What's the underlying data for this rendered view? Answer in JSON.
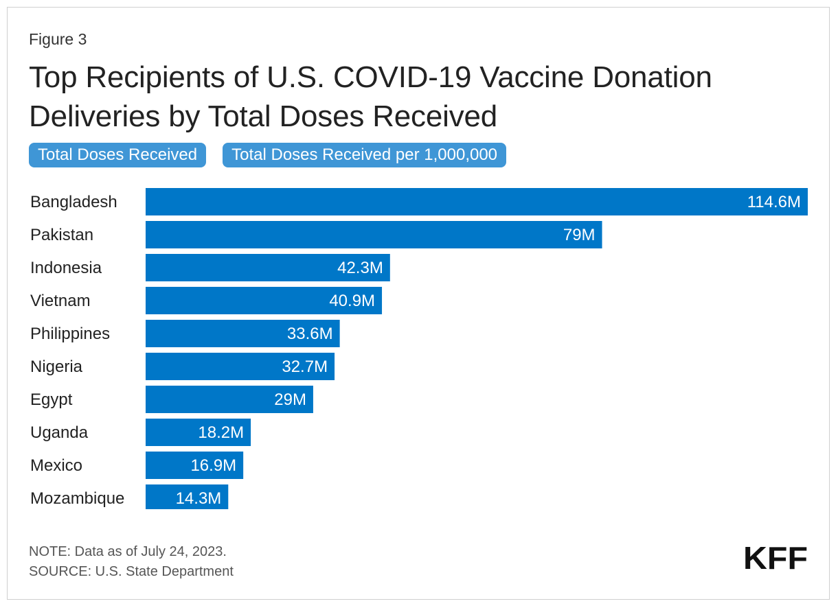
{
  "figure_label": "Figure 3",
  "title": "Top Recipients of U.S. COVID-19 Vaccine Donation Deliveries by Total Doses Received",
  "toggles": [
    {
      "label": "Total Doses Received"
    },
    {
      "label": "Total Doses Received per 1,000,000"
    }
  ],
  "colors": {
    "bar": "#0077c8",
    "toggle": "#3f96d6",
    "bar_label": "#ffffff"
  },
  "chart_data": {
    "type": "bar",
    "orientation": "horizontal",
    "title": "Top Recipients of U.S. COVID-19 Vaccine Donation Deliveries by Total Doses Received",
    "xlabel": "",
    "ylabel": "",
    "xlim": [
      0,
      114.6
    ],
    "grid": false,
    "legend": "none",
    "categories": [
      "Bangladesh",
      "Pakistan",
      "Indonesia",
      "Vietnam",
      "Philippines",
      "Nigeria",
      "Egypt",
      "Uganda",
      "Mexico",
      "Mozambique"
    ],
    "values": [
      114.6,
      79,
      42.3,
      40.9,
      33.6,
      32.7,
      29,
      18.2,
      16.9,
      14.3
    ],
    "value_labels": [
      "114.6M",
      "79M",
      "42.3M",
      "40.9M",
      "33.6M",
      "32.7M",
      "29M",
      "18.2M",
      "16.9M",
      "14.3M"
    ],
    "unit": "M"
  },
  "footer": {
    "note": "NOTE: Data as of July 24, 2023.",
    "source": "SOURCE: U.S. State Department"
  },
  "logo_text": "KFF"
}
